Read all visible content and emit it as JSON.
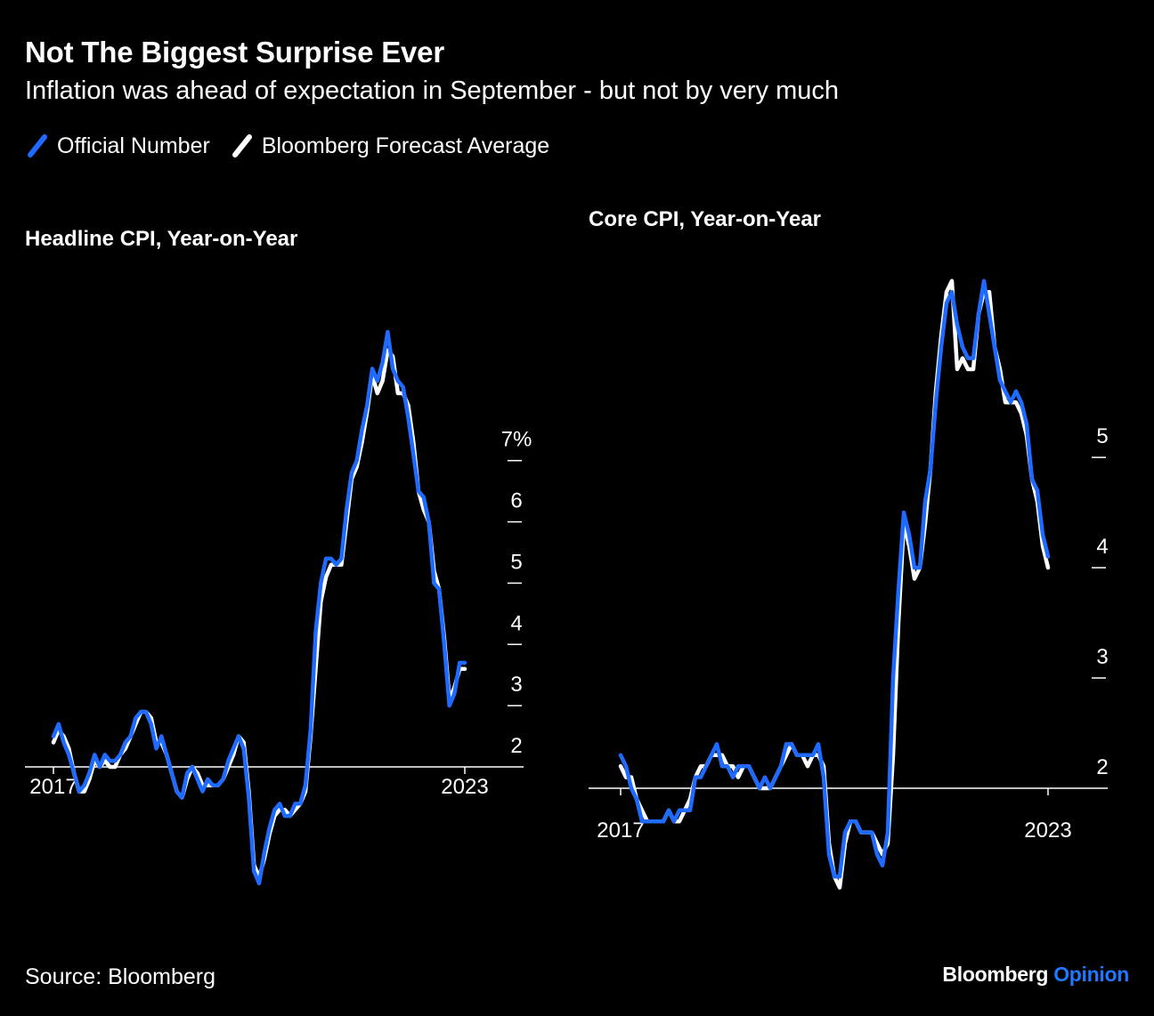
{
  "title": "Not The Biggest Surprise Ever",
  "subtitle": "Inflation was ahead of expectation in September - but not by very much",
  "legend": [
    {
      "label": "Official Number",
      "color": "#1f6bff"
    },
    {
      "label": "Bloomberg Forecast Average",
      "color": "#ffffff"
    }
  ],
  "footer": {
    "source": "Source: Bloomberg",
    "brand_name": "Bloomberg",
    "brand_suffix": "Opinion"
  },
  "colors": {
    "official": "#1f6bff",
    "forecast": "#ffffff",
    "axis": "#ffffff",
    "background": "#000000"
  },
  "chart_data": [
    {
      "type": "line",
      "title": "Headline CPI, Year-on-Year",
      "x_tick_labels": [
        "2017",
        "2023"
      ],
      "y_ticks": [
        2,
        3,
        4,
        5,
        6,
        7
      ],
      "y_tick_labels": [
        "2",
        "3",
        "4",
        "5",
        "6",
        "7%"
      ],
      "ylim": [
        0.2,
        9.9
      ],
      "x_range": [
        "2017-01",
        "2023-09"
      ],
      "series": [
        {
          "name": "Official Number",
          "values": [
            2.5,
            2.7,
            2.4,
            2.2,
            1.9,
            1.6,
            1.7,
            1.9,
            2.2,
            2.0,
            2.2,
            2.1,
            2.1,
            2.2,
            2.4,
            2.5,
            2.8,
            2.9,
            2.9,
            2.7,
            2.3,
            2.5,
            2.2,
            1.9,
            1.6,
            1.5,
            1.9,
            2.0,
            1.8,
            1.6,
            1.8,
            1.7,
            1.7,
            1.8,
            2.1,
            2.3,
            2.5,
            2.3,
            1.5,
            0.3,
            0.1,
            0.6,
            1.0,
            1.3,
            1.4,
            1.2,
            1.2,
            1.4,
            1.4,
            1.7,
            2.6,
            4.2,
            5.0,
            5.4,
            5.4,
            5.3,
            5.4,
            6.2,
            6.8,
            7.0,
            7.5,
            7.9,
            8.5,
            8.3,
            8.6,
            9.1,
            8.5,
            8.3,
            8.2,
            7.7,
            7.1,
            6.5,
            6.4,
            6.0,
            5.0,
            4.9,
            4.0,
            3.0,
            3.2,
            3.7,
            3.7
          ],
          "color": "#1f6bff"
        },
        {
          "name": "Bloomberg Forecast Average",
          "values": [
            2.4,
            2.6,
            2.5,
            2.3,
            1.9,
            1.6,
            1.6,
            1.8,
            2.1,
            2.0,
            2.1,
            2.0,
            2.0,
            2.2,
            2.3,
            2.5,
            2.7,
            2.9,
            2.9,
            2.8,
            2.4,
            2.4,
            2.2,
            1.9,
            1.6,
            1.5,
            1.8,
            2.0,
            1.9,
            1.7,
            1.7,
            1.7,
            1.7,
            1.8,
            2.0,
            2.2,
            2.5,
            2.4,
            1.6,
            0.4,
            0.2,
            0.5,
            0.9,
            1.2,
            1.3,
            1.3,
            1.2,
            1.3,
            1.4,
            1.6,
            2.5,
            3.6,
            4.7,
            5.1,
            5.3,
            5.3,
            5.3,
            6.0,
            6.7,
            6.9,
            7.3,
            7.8,
            8.4,
            8.1,
            8.3,
            8.8,
            8.7,
            8.1,
            8.1,
            7.9,
            7.3,
            6.5,
            6.2,
            6.0,
            5.2,
            4.9,
            4.1,
            3.1,
            3.3,
            3.6,
            3.6
          ],
          "color": "#ffffff"
        }
      ]
    },
    {
      "type": "line",
      "title": "Core CPI, Year-on-Year",
      "x_tick_labels": [
        "2017",
        "2023"
      ],
      "y_ticks": [
        2,
        3,
        4,
        5
      ],
      "y_tick_labels": [
        "2",
        "3",
        "4",
        "5"
      ],
      "ylim": [
        1.0,
        6.8
      ],
      "x_range": [
        "2017-01",
        "2023-09"
      ],
      "series": [
        {
          "name": "Official Number",
          "values": [
            2.3,
            2.2,
            2.0,
            1.9,
            1.7,
            1.7,
            1.7,
            1.7,
            1.7,
            1.8,
            1.7,
            1.8,
            1.8,
            1.8,
            2.1,
            2.1,
            2.2,
            2.3,
            2.4,
            2.2,
            2.2,
            2.1,
            2.2,
            2.2,
            2.2,
            2.1,
            2.0,
            2.1,
            2.0,
            2.1,
            2.2,
            2.4,
            2.4,
            2.3,
            2.3,
            2.3,
            2.3,
            2.4,
            2.1,
            1.4,
            1.2,
            1.2,
            1.6,
            1.7,
            1.7,
            1.6,
            1.6,
            1.6,
            1.4,
            1.3,
            1.6,
            3.0,
            3.8,
            4.5,
            4.3,
            4.0,
            4.0,
            4.6,
            4.9,
            5.5,
            6.0,
            6.4,
            6.5,
            6.2,
            6.0,
            5.9,
            5.9,
            6.3,
            6.6,
            6.3,
            6.0,
            5.7,
            5.6,
            5.5,
            5.6,
            5.5,
            5.3,
            4.8,
            4.7,
            4.3,
            4.1
          ],
          "color": "#1f6bff"
        },
        {
          "name": "Bloomberg Forecast Average",
          "values": [
            2.2,
            2.1,
            2.1,
            1.9,
            1.8,
            1.7,
            1.7,
            1.7,
            1.7,
            1.8,
            1.7,
            1.7,
            1.8,
            1.9,
            2.1,
            2.2,
            2.2,
            2.3,
            2.3,
            2.3,
            2.2,
            2.2,
            2.1,
            2.2,
            2.2,
            2.1,
            2.0,
            2.0,
            2.0,
            2.1,
            2.2,
            2.3,
            2.4,
            2.3,
            2.3,
            2.2,
            2.3,
            2.3,
            2.2,
            1.5,
            1.2,
            1.1,
            1.5,
            1.7,
            1.7,
            1.6,
            1.6,
            1.6,
            1.5,
            1.4,
            1.5,
            2.3,
            3.5,
            4.4,
            4.2,
            3.9,
            4.0,
            4.4,
            4.9,
            5.6,
            6.1,
            6.5,
            6.6,
            5.8,
            5.9,
            5.8,
            5.8,
            6.3,
            6.5,
            6.5,
            6.0,
            5.8,
            5.5,
            5.5,
            5.5,
            5.4,
            5.2,
            4.8,
            4.6,
            4.2,
            4.0
          ],
          "color": "#ffffff"
        }
      ]
    }
  ]
}
